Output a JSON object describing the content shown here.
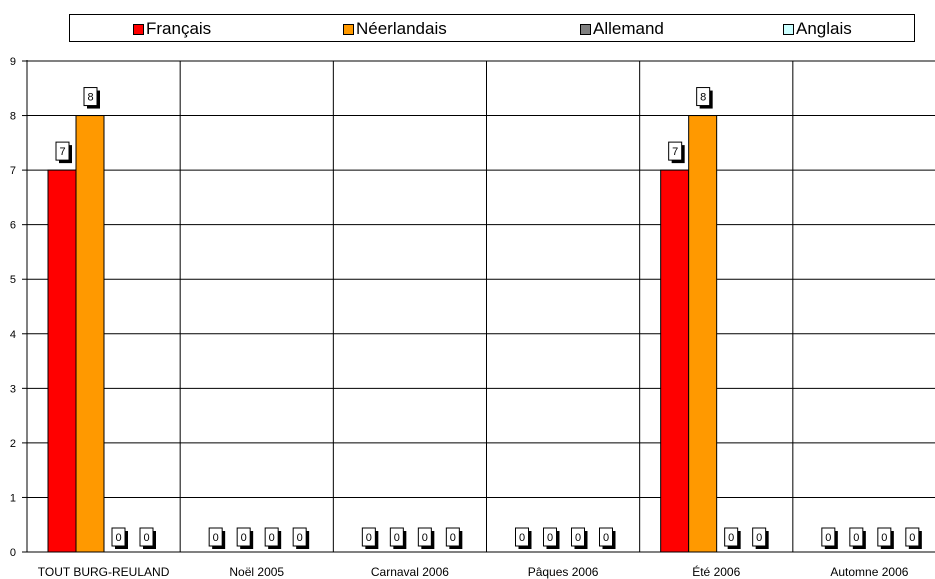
{
  "chart_data": {
    "type": "bar",
    "categories": [
      "TOUT BURG-REULAND",
      "Noël 2005",
      "Carnaval 2006",
      "Pâques 2006",
      "Été 2006",
      "Automne 2006"
    ],
    "series": [
      {
        "name": "Français",
        "color": "#ff0000",
        "values": [
          7,
          0,
          0,
          0,
          7,
          0
        ]
      },
      {
        "name": "Néerlandais",
        "color": "#ff9900",
        "values": [
          8,
          0,
          0,
          0,
          8,
          0
        ]
      },
      {
        "name": "Allemand",
        "color": "#808080",
        "values": [
          0,
          0,
          0,
          0,
          0,
          0
        ]
      },
      {
        "name": "Anglais",
        "color": "#ccffff",
        "values": [
          0,
          0,
          0,
          0,
          0,
          0
        ]
      }
    ],
    "ylim": [
      0,
      9
    ],
    "yticks": [
      0,
      1,
      2,
      3,
      4,
      5,
      6,
      7,
      8,
      9
    ],
    "grid": true,
    "legend_position": "top",
    "data_labels": true
  }
}
